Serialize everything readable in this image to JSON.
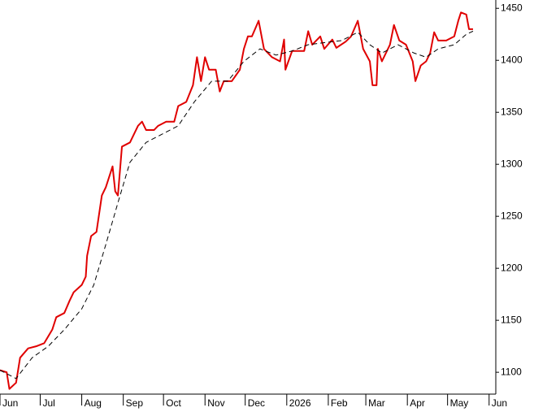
{
  "chart_data": {
    "type": "line",
    "xlim": [
      0,
      370
    ],
    "ylim": [
      1079,
      1458
    ],
    "yticks": [
      1100,
      1150,
      1200,
      1250,
      1300,
      1350,
      1400,
      1450
    ],
    "xticks": [
      {
        "value": 0,
        "label": "Jun"
      },
      {
        "value": 30,
        "label": "Jul"
      },
      {
        "value": 61,
        "label": "Aug"
      },
      {
        "value": 92,
        "label": "Sep"
      },
      {
        "value": 122,
        "label": "Oct"
      },
      {
        "value": 153,
        "label": "Nov"
      },
      {
        "value": 183,
        "label": "Dec"
      },
      {
        "value": 214,
        "label": "2026"
      },
      {
        "value": 245,
        "label": "Feb"
      },
      {
        "value": 273,
        "label": "Mar"
      },
      {
        "value": 304,
        "label": "Apr"
      },
      {
        "value": 334,
        "label": "May"
      },
      {
        "value": 365,
        "label": "Jun"
      }
    ],
    "series": [
      {
        "color": "#e00000",
        "dash": false,
        "x": [
          0,
          5,
          7,
          12,
          15,
          21,
          27,
          33,
          39,
          42,
          48,
          52,
          55,
          61,
          64,
          65,
          68,
          72,
          76,
          79,
          84,
          86,
          88,
          91,
          97,
          103,
          106,
          109,
          115,
          118,
          124,
          130,
          133,
          139,
          144,
          147,
          150,
          153,
          156,
          161,
          164,
          167,
          173,
          179,
          182,
          185,
          188,
          193,
          197,
          203,
          209,
          212,
          213,
          218,
          227,
          230,
          233,
          239,
          242,
          248,
          251,
          258,
          262,
          267,
          271,
          276,
          278,
          281,
          282,
          285,
          291,
          294,
          298,
          303,
          308,
          310,
          314,
          318,
          321,
          324,
          327,
          333,
          339,
          342,
          344,
          348,
          350,
          353
        ],
        "values": [
          1102,
          1100,
          1084,
          1090,
          1114,
          1123,
          1125,
          1128,
          1141,
          1153,
          1157,
          1169,
          1177,
          1184,
          1192,
          1212,
          1231,
          1235,
          1270,
          1278,
          1298,
          1274,
          1270,
          1317,
          1321,
          1337,
          1341,
          1333,
          1333,
          1337,
          1341,
          1341,
          1356,
          1360,
          1376,
          1403,
          1380,
          1403,
          1391,
          1391,
          1370,
          1380,
          1380,
          1391,
          1411,
          1423,
          1423,
          1438,
          1411,
          1403,
          1399,
          1420,
          1391,
          1409,
          1409,
          1428,
          1415,
          1423,
          1411,
          1420,
          1412,
          1418,
          1423,
          1438,
          1411,
          1399,
          1376,
          1376,
          1411,
          1399,
          1415,
          1434,
          1419,
          1415,
          1399,
          1380,
          1395,
          1399,
          1407,
          1427,
          1419,
          1419,
          1423,
          1438,
          1446,
          1444,
          1430,
          1430
        ]
      },
      {
        "color": "#000000",
        "dash": true,
        "x": [
          0,
          12,
          24,
          36,
          48,
          61,
          70,
          79,
          88,
          97,
          109,
          121,
          133,
          145,
          158,
          170,
          182,
          194,
          206,
          218,
          230,
          242,
          255,
          267,
          276,
          285,
          297,
          309,
          318,
          327,
          339,
          348,
          353
        ],
        "values": [
          1102,
          1094,
          1114,
          1125,
          1141,
          1161,
          1184,
          1223,
          1263,
          1302,
          1321,
          1329,
          1337,
          1360,
          1380,
          1380,
          1399,
          1411,
          1405,
          1409,
          1415,
          1417,
          1419,
          1427,
          1415,
          1407,
          1415,
          1407,
          1403,
          1411,
          1415,
          1425,
          1428
        ]
      }
    ]
  }
}
